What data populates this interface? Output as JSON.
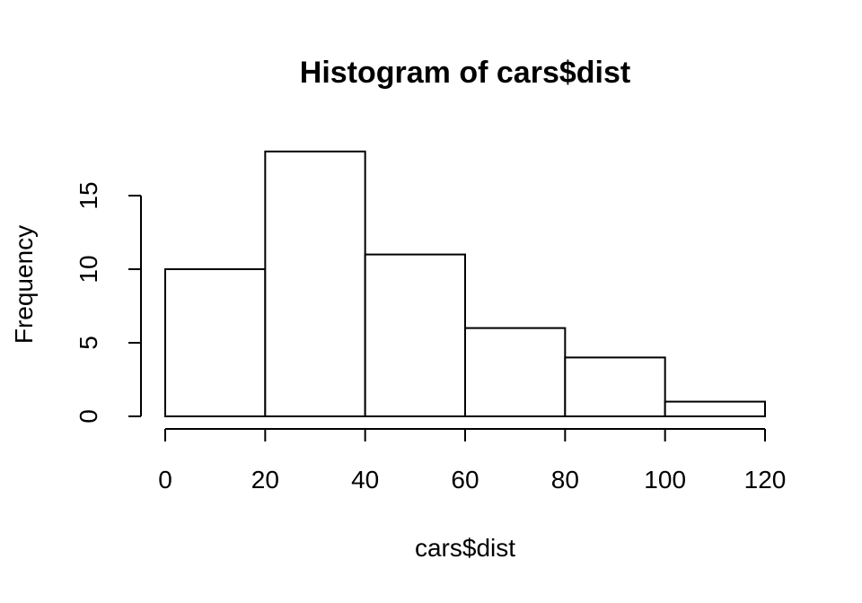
{
  "chart_data": {
    "type": "bar",
    "title": "Histogram of cars$dist",
    "xlabel": "cars$dist",
    "ylabel": "Frequency",
    "bins": [
      {
        "from": 0,
        "to": 20,
        "count": 10
      },
      {
        "from": 20,
        "to": 40,
        "count": 18
      },
      {
        "from": 40,
        "to": 60,
        "count": 11
      },
      {
        "from": 60,
        "to": 80,
        "count": 6
      },
      {
        "from": 80,
        "to": 100,
        "count": 4
      },
      {
        "from": 100,
        "to": 120,
        "count": 1
      }
    ],
    "xticks": [
      0,
      20,
      40,
      60,
      80,
      100,
      120
    ],
    "yticks": [
      0,
      5,
      10,
      15
    ],
    "xlim": [
      0,
      120
    ],
    "ylim": [
      0,
      18
    ],
    "grid": false,
    "colors": {
      "fill": "#ffffff",
      "stroke": "#000000"
    }
  }
}
